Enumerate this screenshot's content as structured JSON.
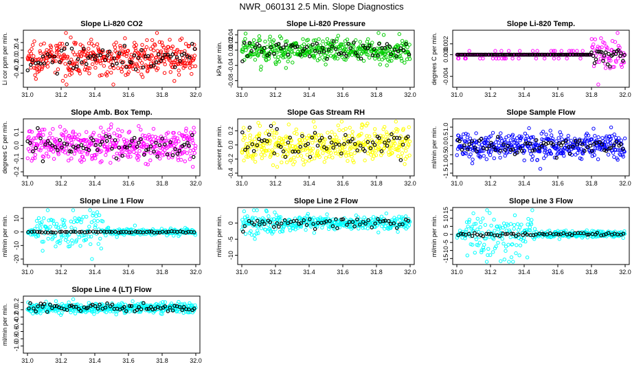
{
  "figure": {
    "title": "NWR_060131  2.5 Min. Slope Diagnostics"
  },
  "chart_data": [
    {
      "type": "scatter",
      "title": "Slope Li-820 CO2",
      "ylabel": "Li cor ppm per min.",
      "xlim": [
        31.0,
        32.0
      ],
      "ylim": [
        -0.7,
        0.65
      ],
      "xticks": [
        "31.0",
        "31.2",
        "31.4",
        "31.6",
        "31.8",
        "32.0"
      ],
      "yticks": [
        "-0.4",
        "-0.2",
        "0.0",
        "0.2",
        "0.4"
      ],
      "ytick_values": [
        -0.4,
        -0.2,
        0.0,
        0.2,
        0.4
      ],
      "color": "#ff0000",
      "center": 0.0,
      "spread": 0.22,
      "black_spread": 0.15,
      "n": 420,
      "nblack": 70
    },
    {
      "type": "scatter",
      "title": "Slope Li-820 Pressure",
      "ylabel": "kPa per min.",
      "xlim": [
        31.0,
        32.0
      ],
      "ylim": [
        -0.09,
        0.045
      ],
      "xticks": [
        "31.0",
        "31.2",
        "31.4",
        "31.6",
        "31.8",
        "32.0"
      ],
      "yticks": [
        "-0.08",
        "-0.04",
        "0.00",
        "0.02",
        "0.04"
      ],
      "ytick_values": [
        -0.08,
        -0.04,
        0.0,
        0.02,
        0.04
      ],
      "color": "#00cc00",
      "center": 0.0,
      "spread": 0.017,
      "black_spread": 0.012,
      "n": 420,
      "nblack": 70
    },
    {
      "type": "scatter",
      "title": "Slope Li-820 Temp.",
      "ylabel": "degrees C per min.",
      "xlim": [
        31.0,
        32.0
      ],
      "ylim": [
        -0.0055,
        0.004
      ],
      "xticks": [
        "31.0",
        "31.2",
        "31.4",
        "31.6",
        "31.8",
        "32.0"
      ],
      "yticks": [
        "-0.004",
        "0.000",
        "0.002"
      ],
      "ytick_values": [
        -0.004,
        0.0,
        0.002
      ],
      "color": "#ff00ff",
      "center": 0.0,
      "spread": 0.0002,
      "black_spread": 0.0001,
      "n": 300,
      "nblack": 120
    },
    {
      "type": "scatter",
      "title": "Slope Amb. Box Temp.",
      "ylabel": "degrees C per min.",
      "xlim": [
        31.0,
        32.0
      ],
      "ylim": [
        -0.21,
        0.18
      ],
      "xticks": [
        "31.0",
        "31.2",
        "31.4",
        "31.6",
        "31.8",
        "32.0"
      ],
      "yticks": [
        "-0.2",
        "-0.1",
        "0.0",
        "0.1"
      ],
      "ytick_values": [
        -0.2,
        -0.1,
        0.0,
        0.1
      ],
      "color": "#ff00ff",
      "center": 0.0,
      "spread": 0.06,
      "black_spread": 0.04,
      "n": 420,
      "nblack": 70
    },
    {
      "type": "scatter",
      "title": "Slope Gas Stream RH",
      "ylabel": "percent per min.",
      "xlim": [
        31.0,
        32.0
      ],
      "ylim": [
        -0.4,
        0.33
      ],
      "xticks": [
        "31.0",
        "31.2",
        "31.4",
        "31.6",
        "31.8",
        "32.0"
      ],
      "yticks": [
        "-0.4",
        "-0.2",
        "0.0",
        "0.2"
      ],
      "ytick_values": [
        -0.4,
        -0.2,
        0.0,
        0.2
      ],
      "color": "#ffff00",
      "center": 0.0,
      "spread": 0.13,
      "black_spread": 0.1,
      "n": 420,
      "nblack": 70
    },
    {
      "type": "scatter",
      "title": "Slope Sample Flow",
      "ylabel": "ml/min per min.",
      "xlim": [
        31.0,
        32.0
      ],
      "ylim": [
        -1.5,
        1.3
      ],
      "xticks": [
        "31.0",
        "31.2",
        "31.4",
        "31.6",
        "31.8",
        "32.0"
      ],
      "yticks": [
        "-1.5",
        "-1.0",
        "-0.5",
        "0.0",
        "0.5",
        "1.0"
      ],
      "ytick_values": [
        -1.5,
        -1.0,
        -0.5,
        0.0,
        0.5,
        1.0
      ],
      "color": "#0000ff",
      "center": 0.0,
      "spread": 0.35,
      "black_spread": 0.25,
      "n": 420,
      "nblack": 70
    },
    {
      "type": "scatter",
      "title": "Slope Line 1 Flow",
      "ylabel": "ml/min per min.",
      "xlim": [
        31.0,
        32.0
      ],
      "ylim": [
        -22,
        16
      ],
      "xticks": [
        "31.0",
        "31.2",
        "31.4",
        "31.6",
        "31.8",
        "32.0"
      ],
      "yticks": [
        "-20",
        "-10",
        "0",
        "10"
      ],
      "ytick_values": [
        -20,
        -10,
        0,
        10
      ],
      "color": "#00ffff",
      "center": 0.0,
      "spread": 1.2,
      "black_spread": 0.3,
      "n": 300,
      "nblack": 60
    },
    {
      "type": "scatter",
      "title": "Slope Line 2 Flow",
      "ylabel": "ml/min per min.",
      "xlim": [
        31.0,
        32.0
      ],
      "ylim": [
        -12,
        4
      ],
      "xticks": [
        "31.0",
        "31.2",
        "31.4",
        "31.6",
        "31.8",
        "32.0"
      ],
      "yticks": [
        "-10",
        "-5",
        "0"
      ],
      "ytick_values": [
        -10,
        -5,
        0
      ],
      "color": "#00ffff",
      "center": 0.0,
      "spread": 1.0,
      "black_spread": 0.8,
      "n": 380,
      "nblack": 60
    },
    {
      "type": "scatter",
      "title": "Slope Line 3 Flow",
      "ylabel": "ml/min per min.",
      "xlim": [
        31.0,
        32.0
      ],
      "ylim": [
        -17,
        15
      ],
      "xticks": [
        "31.0",
        "31.2",
        "31.4",
        "31.6",
        "31.8",
        "32.0"
      ],
      "yticks": [
        "-15",
        "-10",
        "-5",
        "0",
        "5",
        "10",
        "15"
      ],
      "ytick_values": [
        -15,
        -10,
        -5,
        0,
        5,
        10,
        15
      ],
      "color": "#00ffff",
      "center": 0.0,
      "spread": 1.2,
      "black_spread": 0.6,
      "n": 340,
      "nblack": 60
    },
    {
      "type": "scatter",
      "title": "Slope Line 4 (LT) Flow",
      "ylabel": "ml/min per min.",
      "xlim": [
        31.0,
        32.0
      ],
      "ylim": [
        -1.12,
        0.3
      ],
      "xticks": [
        "31.0",
        "31.2",
        "31.4",
        "31.6",
        "31.8",
        "32.0"
      ],
      "yticks": [
        "-1.0",
        "-0.8",
        "-0.6",
        "-0.4",
        "-0.2",
        "0.0",
        "0.2"
      ],
      "ytick_values": [
        -1.0,
        -0.8,
        -0.6,
        -0.4,
        -0.2,
        0.0,
        0.2
      ],
      "color": "#00ffff",
      "center": 0.05,
      "spread": 0.07,
      "black_spread": 0.06,
      "n": 420,
      "nblack": 70
    }
  ]
}
